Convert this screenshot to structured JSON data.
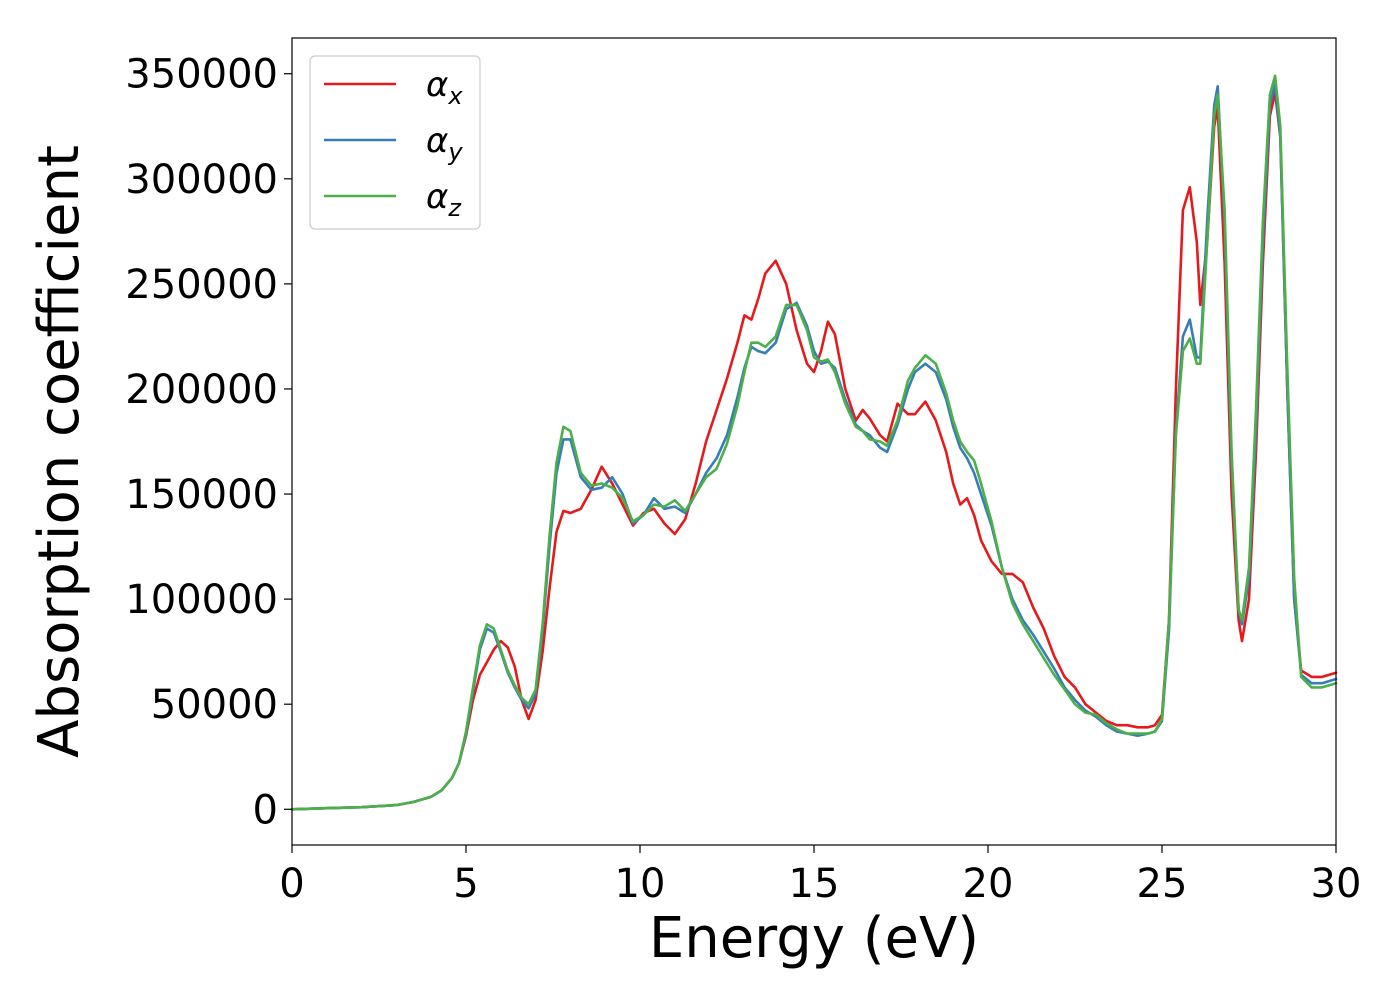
{
  "chart_data": {
    "type": "line",
    "title": "",
    "xlabel": "Energy (eV)",
    "ylabel": "Absorption coefficient",
    "xlim": [
      0,
      30
    ],
    "ylim": [
      -17000,
      367000
    ],
    "xticks": [
      0,
      5,
      10,
      15,
      20,
      25,
      30
    ],
    "xtick_labels": [
      "0",
      "5",
      "10",
      "15",
      "20",
      "25",
      "30"
    ],
    "yticks": [
      0,
      50000,
      100000,
      150000,
      200000,
      250000,
      300000,
      350000
    ],
    "ytick_labels": [
      "0",
      "50000",
      "100000",
      "150000",
      "200000",
      "250000",
      "300000",
      "350000"
    ],
    "grid": false,
    "legend_position": "top-left",
    "series": [
      {
        "name": "α_x",
        "label_main": "α",
        "label_sub": "x",
        "color": "#e41a1c",
        "x": [
          0,
          1,
          2,
          3,
          3.5,
          4,
          4.3,
          4.6,
          4.8,
          5.0,
          5.2,
          5.4,
          5.6,
          5.8,
          6.0,
          6.2,
          6.4,
          6.6,
          6.8,
          7.0,
          7.2,
          7.4,
          7.6,
          7.8,
          8.0,
          8.3,
          8.6,
          8.9,
          9.2,
          9.5,
          9.8,
          10.1,
          10.4,
          10.7,
          11.0,
          11.3,
          11.6,
          11.9,
          12.2,
          12.5,
          12.8,
          13.0,
          13.2,
          13.4,
          13.6,
          13.9,
          14.2,
          14.5,
          14.8,
          15.0,
          15.2,
          15.4,
          15.6,
          15.9,
          16.2,
          16.4,
          16.6,
          16.9,
          17.1,
          17.4,
          17.7,
          17.9,
          18.2,
          18.5,
          18.8,
          19.0,
          19.2,
          19.4,
          19.6,
          19.8,
          20.1,
          20.4,
          20.7,
          21.0,
          21.3,
          21.6,
          21.9,
          22.2,
          22.5,
          22.8,
          23.1,
          23.4,
          23.7,
          24.0,
          24.3,
          24.6,
          24.8,
          25.0,
          25.2,
          25.4,
          25.6,
          25.8,
          26.0,
          26.1,
          26.3,
          26.5,
          26.6,
          26.8,
          27.0,
          27.2,
          27.3,
          27.5,
          27.7,
          27.9,
          28.1,
          28.25,
          28.4,
          28.6,
          28.8,
          29.0,
          29.3,
          29.6,
          30.0
        ],
        "y": [
          0,
          500,
          1000,
          2000,
          3500,
          6000,
          9000,
          15000,
          22000,
          35000,
          52000,
          64000,
          70000,
          76000,
          80000,
          77000,
          68000,
          52000,
          43000,
          52000,
          75000,
          105000,
          132000,
          142000,
          141000,
          143000,
          152000,
          163000,
          155000,
          145000,
          135000,
          141000,
          143000,
          136000,
          131000,
          138000,
          155000,
          175000,
          190000,
          205000,
          222000,
          235000,
          233000,
          243000,
          255000,
          261000,
          250000,
          228000,
          212000,
          208000,
          218000,
          232000,
          226000,
          200000,
          185000,
          190000,
          186000,
          178000,
          175000,
          193000,
          188000,
          188000,
          194000,
          185000,
          170000,
          155000,
          145000,
          148000,
          140000,
          128000,
          118000,
          112000,
          112000,
          108000,
          96000,
          86000,
          73000,
          63000,
          58000,
          50000,
          46000,
          42000,
          40000,
          40000,
          39000,
          39000,
          40000,
          45000,
          90000,
          200000,
          285000,
          296000,
          270000,
          240000,
          270000,
          325000,
          334000,
          260000,
          150000,
          90000,
          80000,
          100000,
          170000,
          260000,
          330000,
          341000,
          320000,
          200000,
          100000,
          66000,
          63000,
          63000,
          65000
        ]
      },
      {
        "name": "α_y",
        "label_main": "α",
        "label_sub": "y",
        "color": "#377eb8",
        "x": [
          0,
          1,
          2,
          3,
          3.5,
          4,
          4.3,
          4.6,
          4.8,
          5.0,
          5.2,
          5.4,
          5.6,
          5.8,
          6.0,
          6.2,
          6.4,
          6.6,
          6.8,
          7.0,
          7.2,
          7.4,
          7.6,
          7.8,
          8.0,
          8.3,
          8.6,
          8.9,
          9.2,
          9.5,
          9.8,
          10.1,
          10.4,
          10.7,
          11.0,
          11.3,
          11.6,
          11.9,
          12.2,
          12.5,
          12.8,
          13.0,
          13.2,
          13.4,
          13.6,
          13.9,
          14.2,
          14.5,
          14.8,
          15.0,
          15.2,
          15.4,
          15.6,
          15.9,
          16.2,
          16.4,
          16.6,
          16.9,
          17.1,
          17.4,
          17.7,
          17.9,
          18.2,
          18.5,
          18.8,
          19.0,
          19.2,
          19.4,
          19.6,
          19.8,
          20.1,
          20.4,
          20.7,
          21.0,
          21.3,
          21.6,
          21.9,
          22.2,
          22.5,
          22.8,
          23.1,
          23.4,
          23.7,
          24.0,
          24.3,
          24.6,
          24.8,
          25.0,
          25.2,
          25.4,
          25.6,
          25.8,
          26.0,
          26.1,
          26.3,
          26.5,
          26.6,
          26.8,
          27.0,
          27.2,
          27.3,
          27.5,
          27.7,
          27.9,
          28.1,
          28.25,
          28.4,
          28.6,
          28.8,
          29.0,
          29.3,
          29.6,
          30.0
        ],
        "y": [
          0,
          500,
          1000,
          2000,
          3500,
          6000,
          9000,
          15000,
          22000,
          36000,
          56000,
          76000,
          86000,
          84000,
          75000,
          65000,
          58000,
          52000,
          48000,
          55000,
          85000,
          125000,
          160000,
          176000,
          176000,
          158000,
          152000,
          153000,
          158000,
          150000,
          136000,
          140000,
          148000,
          143000,
          144000,
          141000,
          150000,
          160000,
          167000,
          178000,
          196000,
          210000,
          220000,
          218000,
          217000,
          222000,
          238000,
          241000,
          230000,
          218000,
          212000,
          213000,
          210000,
          195000,
          183000,
          180000,
          178000,
          172000,
          170000,
          183000,
          200000,
          208000,
          212000,
          208000,
          195000,
          182000,
          172000,
          167000,
          160000,
          150000,
          135000,
          115000,
          100000,
          90000,
          83000,
          75000,
          67000,
          58000,
          52000,
          47000,
          44000,
          40000,
          37000,
          36000,
          35000,
          36000,
          37000,
          42000,
          85000,
          180000,
          225000,
          233000,
          215000,
          215000,
          280000,
          335000,
          344000,
          280000,
          165000,
          95000,
          88000,
          110000,
          180000,
          270000,
          335000,
          345000,
          320000,
          200000,
          100000,
          64000,
          60000,
          60000,
          62000
        ]
      },
      {
        "name": "α_z",
        "label_main": "α",
        "label_sub": "z",
        "color": "#4daf4a",
        "x": [
          0,
          1,
          2,
          3,
          3.5,
          4,
          4.3,
          4.6,
          4.8,
          5.0,
          5.2,
          5.4,
          5.6,
          5.8,
          6.0,
          6.2,
          6.4,
          6.6,
          6.8,
          7.0,
          7.2,
          7.4,
          7.6,
          7.8,
          8.0,
          8.3,
          8.6,
          8.9,
          9.2,
          9.5,
          9.8,
          10.1,
          10.4,
          10.7,
          11.0,
          11.3,
          11.6,
          11.9,
          12.2,
          12.5,
          12.8,
          13.0,
          13.2,
          13.4,
          13.6,
          13.9,
          14.2,
          14.5,
          14.8,
          15.0,
          15.2,
          15.4,
          15.6,
          15.9,
          16.2,
          16.4,
          16.6,
          16.9,
          17.1,
          17.4,
          17.7,
          17.9,
          18.2,
          18.5,
          18.8,
          19.0,
          19.2,
          19.4,
          19.6,
          19.8,
          20.1,
          20.4,
          20.7,
          21.0,
          21.3,
          21.6,
          21.9,
          22.2,
          22.5,
          22.8,
          23.1,
          23.4,
          23.7,
          24.0,
          24.3,
          24.6,
          24.8,
          25.0,
          25.2,
          25.4,
          25.6,
          25.8,
          26.0,
          26.1,
          26.3,
          26.5,
          26.6,
          26.8,
          27.0,
          27.2,
          27.3,
          27.5,
          27.7,
          27.9,
          28.1,
          28.25,
          28.4,
          28.6,
          28.8,
          29.0,
          29.3,
          29.6,
          30.0
        ],
        "y": [
          0,
          500,
          1000,
          2000,
          3500,
          6000,
          9000,
          15000,
          22000,
          37000,
          58000,
          78000,
          88000,
          86000,
          76000,
          66000,
          59000,
          53000,
          50000,
          57000,
          88000,
          130000,
          165000,
          182000,
          180000,
          160000,
          154000,
          155000,
          153000,
          148000,
          137000,
          140000,
          145000,
          144000,
          147000,
          142000,
          150000,
          158000,
          162000,
          174000,
          192000,
          208000,
          222000,
          222000,
          220000,
          225000,
          240000,
          240000,
          228000,
          215000,
          213000,
          214000,
          208000,
          193000,
          182000,
          180000,
          176000,
          175000,
          173000,
          185000,
          204000,
          210000,
          216000,
          212000,
          198000,
          185000,
          175000,
          170000,
          166000,
          155000,
          137000,
          115000,
          98000,
          88000,
          80000,
          72000,
          64000,
          57000,
          50000,
          46000,
          45000,
          41000,
          38000,
          36000,
          36000,
          36000,
          37000,
          43000,
          90000,
          178000,
          218000,
          224000,
          212000,
          212000,
          270000,
          330000,
          340000,
          285000,
          170000,
          95000,
          90000,
          115000,
          190000,
          280000,
          340000,
          349000,
          325000,
          210000,
          110000,
          63000,
          58000,
          58000,
          60000
        ]
      }
    ]
  }
}
